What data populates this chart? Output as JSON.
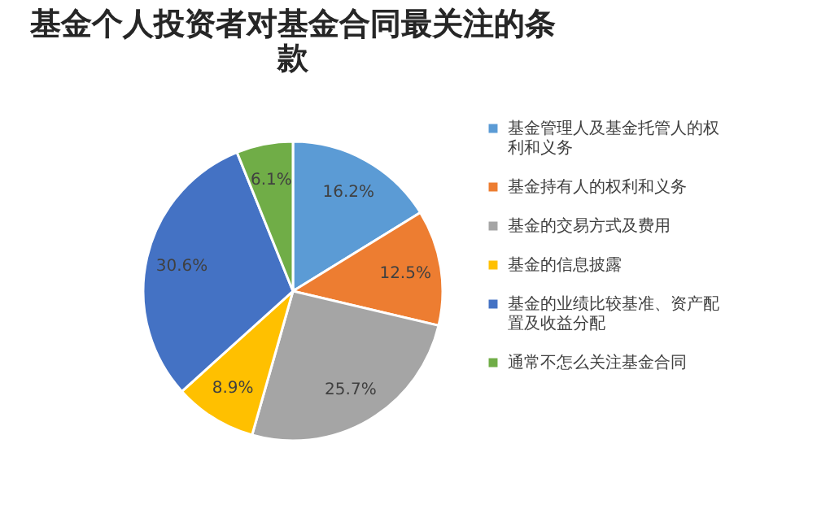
{
  "chart_data": {
    "type": "pie",
    "title": "基金个人投资者对基金合同最关注的条款",
    "categories": [
      "基金管理人及基金托管人的权利和义务",
      "基金持有人的权利和义务",
      "基金的交易方式及费用",
      "基金的信息披露",
      "基金的业绩比较基准、资产配置及收益分配",
      "通常不怎么关注基金合同"
    ],
    "values": [
      16.2,
      12.5,
      25.7,
      8.9,
      30.6,
      6.1
    ],
    "colors": [
      "#5b9bd5",
      "#ed7d31",
      "#a5a5a5",
      "#ffc000",
      "#4472c4",
      "#70ad47"
    ],
    "value_labels": [
      "16.2%",
      "12.5%",
      "25.7%",
      "8.9%",
      "30.6%",
      "6.1%"
    ],
    "legend": "right"
  }
}
